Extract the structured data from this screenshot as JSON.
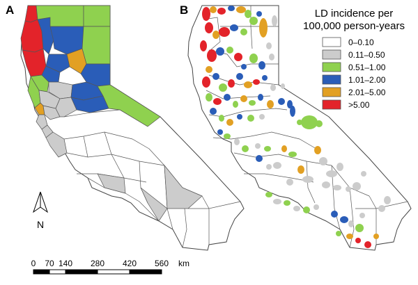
{
  "panels": [
    {
      "label": "A",
      "unit": "county"
    },
    {
      "label": "B",
      "unit": "census tract"
    }
  ],
  "legend": {
    "title_line1": "LD incidence per",
    "title_line2": "100,000 person-years",
    "classes": [
      {
        "label": "0–0.10",
        "color": "#ffffff"
      },
      {
        "label": "0.11–0.50",
        "color": "#cccccc"
      },
      {
        "label": "0.51–1.00",
        "color": "#8fd14f"
      },
      {
        "label": "1.01–2.00",
        "color": "#2a5db8"
      },
      {
        "label": "2.01–5.00",
        "color": "#e2a023"
      },
      {
        "label": ">5.00",
        "color": "#e3232a"
      }
    ]
  },
  "north_arrow": {
    "label": "N",
    "icon": "north-arrow-icon"
  },
  "scale_bar": {
    "ticks": [
      "0",
      "70",
      "140",
      "280",
      "420",
      "560"
    ],
    "tick_values_km": [
      0,
      70,
      140,
      280,
      420,
      560
    ],
    "unit": "km"
  },
  "regions_panel_a": [
    {
      "class": 5
    },
    {
      "class": 5
    },
    {
      "class": 5
    },
    {
      "class": 3
    },
    {
      "class": 3
    },
    {
      "class": 2
    },
    {
      "class": 2
    },
    {
      "class": 2
    },
    {
      "class": 3
    },
    {
      "class": 4
    },
    {
      "class": 3
    },
    {
      "class": 2
    },
    {
      "class": 2
    },
    {
      "class": 3
    },
    {
      "class": 1
    },
    {
      "class": 1
    },
    {
      "class": 4
    },
    {
      "class": 3
    },
    {
      "class": 1
    },
    {
      "class": 1
    },
    {
      "class": 1
    },
    {
      "class": 1
    },
    {
      "class": 3
    },
    {
      "class": 1
    },
    {
      "class": 2
    }
  ]
}
